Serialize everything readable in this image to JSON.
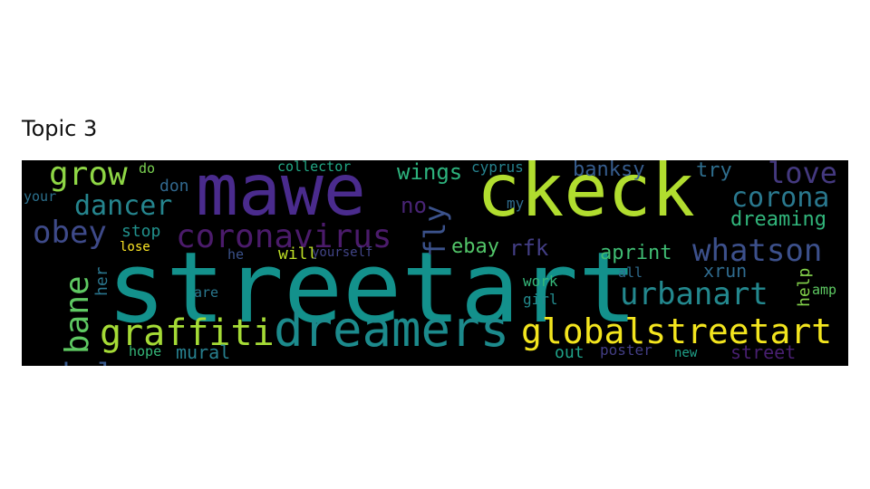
{
  "figure": {
    "title": "Topic 3"
  },
  "words": [
    {
      "text": "streetart",
      "color": "#13918c"
    },
    {
      "text": "mawe",
      "color": "#4a2b8d"
    },
    {
      "text": "ckeck",
      "color": "#b1dd2f"
    },
    {
      "text": "dreamers",
      "color": "#1c8a8c"
    },
    {
      "text": "globalstreetart",
      "color": "#f3e51e"
    },
    {
      "text": "coronavirus",
      "color": "#4b1b6b"
    },
    {
      "text": "graffiti",
      "color": "#a5db36"
    },
    {
      "text": "urbanart",
      "color": "#23888e"
    },
    {
      "text": "whatson",
      "color": "#3c508b"
    },
    {
      "text": "grow",
      "color": "#8ed645"
    },
    {
      "text": "love",
      "color": "#44397f"
    },
    {
      "text": "corona",
      "color": "#2a788e"
    },
    {
      "text": "obey",
      "color": "#3e4a89"
    },
    {
      "text": "dancer",
      "color": "#25858e"
    },
    {
      "text": "rebel",
      "color": "#38598c"
    },
    {
      "text": "bane",
      "color": "#5ec962"
    },
    {
      "text": "dreaming",
      "color": "#31b57b"
    },
    {
      "text": "wings",
      "color": "#2db27d"
    },
    {
      "text": "aprint",
      "color": "#3fbc73"
    },
    {
      "text": "fly",
      "color": "#3b528b"
    },
    {
      "text": "banksy",
      "color": "#365c8d"
    },
    {
      "text": "xrun",
      "color": "#2f6b8e"
    },
    {
      "text": "ebay",
      "color": "#52c569"
    },
    {
      "text": "rfk",
      "color": "#433e85"
    },
    {
      "text": "no",
      "color": "#482475"
    },
    {
      "text": "try",
      "color": "#2e6e8e"
    },
    {
      "text": "stop",
      "color": "#21918c"
    },
    {
      "text": "don",
      "color": "#31688e"
    },
    {
      "text": "help",
      "color": "#84d44b"
    },
    {
      "text": "her",
      "color": "#2a768e"
    },
    {
      "text": "mural",
      "color": "#277f8e"
    },
    {
      "text": "street",
      "color": "#481f70"
    },
    {
      "text": "cyprus",
      "color": "#26828e"
    },
    {
      "text": "collector",
      "color": "#22a884"
    },
    {
      "text": "do",
      "color": "#7ad151"
    },
    {
      "text": "your",
      "color": "#2c718e"
    },
    {
      "text": "my",
      "color": "#2f6c8e"
    },
    {
      "text": "lose",
      "color": "#fde725"
    },
    {
      "text": "he",
      "color": "#3b528b"
    },
    {
      "text": "will",
      "color": "#bddf26"
    },
    {
      "text": "yourself",
      "color": "#414487"
    },
    {
      "text": "are",
      "color": "#2a788e"
    },
    {
      "text": "all",
      "color": "#2f6b8e"
    },
    {
      "text": "work",
      "color": "#35b779"
    },
    {
      "text": "girl",
      "color": "#238a8d"
    },
    {
      "text": "amp",
      "color": "#5ec962"
    },
    {
      "text": "hope",
      "color": "#35b779"
    },
    {
      "text": "out",
      "color": "#1fa188"
    },
    {
      "text": "poster",
      "color": "#433e85"
    },
    {
      "text": "new",
      "color": "#1fa088"
    }
  ]
}
